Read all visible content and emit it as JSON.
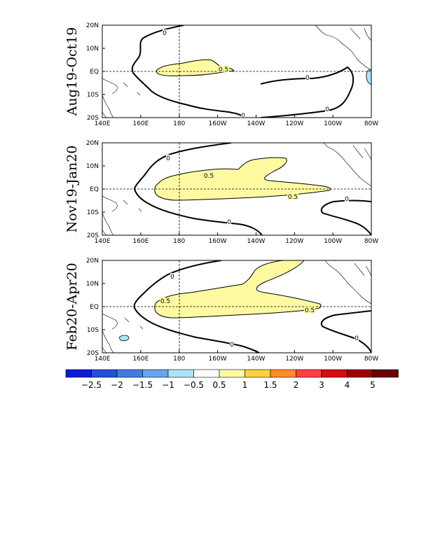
{
  "chart_data": [
    {
      "type": "heatmap",
      "title": "Aug19-Oct19",
      "xticks": [
        "140E",
        "160E",
        "180",
        "160W",
        "140W",
        "120W",
        "100W",
        "80W"
      ],
      "yticks": [
        "20N",
        "10N",
        "EQ",
        "10S",
        "20S"
      ],
      "xlim_lon_east": [
        140,
        280
      ],
      "ylim_lat": [
        -20,
        20
      ],
      "contour_levels": [
        0,
        0.5
      ],
      "contour_labels": [
        "0",
        "0",
        "0",
        "0",
        "0.5"
      ],
      "positive_region": {
        "level": 0.5,
        "lon_range": [
          164,
          198
        ],
        "lat_range": [
          -2,
          4.5
        ]
      }
    },
    {
      "type": "heatmap",
      "title": "Nov19-Jan20",
      "xticks": [
        "140E",
        "160E",
        "180",
        "160W",
        "140W",
        "120W",
        "100W",
        "80W"
      ],
      "yticks": [
        "20N",
        "10N",
        "EQ",
        "10S",
        "20S"
      ],
      "xlim_lon_east": [
        140,
        280
      ],
      "ylim_lat": [
        -20,
        20
      ],
      "contour_levels": [
        0,
        0.5
      ],
      "contour_labels": [
        "0",
        "0",
        "0",
        "0.5",
        "0.5"
      ],
      "positive_region": {
        "level": 0.5,
        "lon_range": [
          164,
          254
        ],
        "lat_range": [
          -4.5,
          14
        ]
      }
    },
    {
      "type": "heatmap",
      "title": "Feb20-Apr20",
      "xticks": [
        "140E",
        "160E",
        "180",
        "160W",
        "140W",
        "120W",
        "100W",
        "80W"
      ],
      "yticks": [
        "20N",
        "10N",
        "EQ",
        "10S",
        "20S"
      ],
      "xlim_lon_east": [
        140,
        280
      ],
      "ylim_lat": [
        -20,
        20
      ],
      "contour_levels": [
        0,
        0.5
      ],
      "contour_labels": [
        "0",
        "0",
        "0",
        "0.5",
        "0.5"
      ],
      "positive_region": {
        "level": 0.5,
        "lon_range": [
          163,
          252
        ],
        "lat_range": [
          -3.5,
          20
        ]
      }
    }
  ],
  "colorbar": {
    "labels": [
      "-2.5",
      "-2",
      "-1.5",
      "-1",
      "-0.5",
      "0.5",
      "1",
      "1.5",
      "2",
      "3",
      "4",
      "5"
    ],
    "colors": [
      "#0f1bd2",
      "#1f4fd8",
      "#3f7ce4",
      "#67a4ef",
      "#a8e5f7",
      "#ffffff",
      "#fffaa2",
      "#ffd040",
      "#ff8b2b",
      "#ff4040",
      "#d60d0d",
      "#a10000",
      "#6b0000"
    ]
  },
  "colors": {
    "positive_fill": "#fffaa2",
    "negative_fill": "#a8e5f7"
  }
}
